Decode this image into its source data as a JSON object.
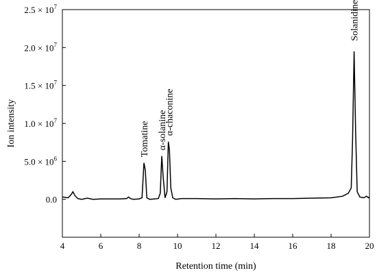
{
  "chart_data": {
    "type": "line",
    "title": "",
    "xlabel": "Retention time (min)",
    "ylabel": "Ion intensity",
    "xlim": [
      4,
      20
    ],
    "ylim": [
      -5000000,
      25000000
    ],
    "xticks": [
      4,
      6,
      8,
      10,
      12,
      14,
      16,
      18,
      20
    ],
    "xtick_labels": [
      "4",
      "6",
      "8",
      "10",
      "12",
      "14",
      "16",
      "18",
      "20"
    ],
    "yticks": [
      0,
      5000000,
      10000000,
      15000000,
      20000000,
      25000000
    ],
    "ytick_labels": [
      {
        "mantissa": "0.0",
        "exp": ""
      },
      {
        "mantissa": "5.0 × 10",
        "exp": "6"
      },
      {
        "mantissa": "1.0 × 10",
        "exp": "7"
      },
      {
        "mantissa": "1.5 × 10",
        "exp": "7"
      },
      {
        "mantissa": "2.0 × 10",
        "exp": "7"
      },
      {
        "mantissa": "2.5 × 10",
        "exp": "7"
      }
    ],
    "grid": false,
    "series": [
      {
        "color": "#000000",
        "x": [
          4.0,
          4.3,
          4.45,
          4.55,
          4.65,
          4.8,
          5.0,
          5.3,
          5.6,
          6.0,
          7.0,
          7.35,
          7.45,
          7.55,
          7.7,
          8.0,
          8.15,
          8.25,
          8.32,
          8.4,
          8.55,
          8.8,
          9.0,
          9.1,
          9.18,
          9.25,
          9.35,
          9.45,
          9.52,
          9.58,
          9.65,
          9.75,
          9.9,
          10.2,
          11.0,
          12.0,
          13.0,
          14.0,
          15.0,
          16.0,
          17.0,
          18.0,
          18.6,
          18.9,
          19.05,
          19.12,
          19.2,
          19.28,
          19.36,
          19.5,
          19.7,
          19.85,
          19.95,
          20.0
        ],
        "y": [
          300000,
          200000,
          600000,
          1000000,
          500000,
          100000,
          0,
          150000,
          0,
          50000,
          50000,
          100000,
          300000,
          100000,
          0,
          50000,
          200000,
          4800000,
          3800000,
          200000,
          0,
          50000,
          100000,
          800000,
          5700000,
          3000000,
          200000,
          1000000,
          7600000,
          6500000,
          1500000,
          200000,
          0,
          100000,
          100000,
          50000,
          100000,
          50000,
          100000,
          100000,
          150000,
          200000,
          400000,
          800000,
          1500000,
          8000000,
          19500000,
          9000000,
          1000000,
          300000,
          200000,
          400000,
          200000,
          300000
        ]
      }
    ],
    "annotations": [
      {
        "text": "Tomatine",
        "x": 8.25,
        "y": 5200000
      },
      {
        "text": "α-solanine",
        "x": 9.18,
        "y": 6100000
      },
      {
        "text": "α-chaconine",
        "x": 9.55,
        "y": 8000000
      },
      {
        "text": "Solanidine",
        "x": 19.2,
        "y": 20500000
      }
    ]
  }
}
